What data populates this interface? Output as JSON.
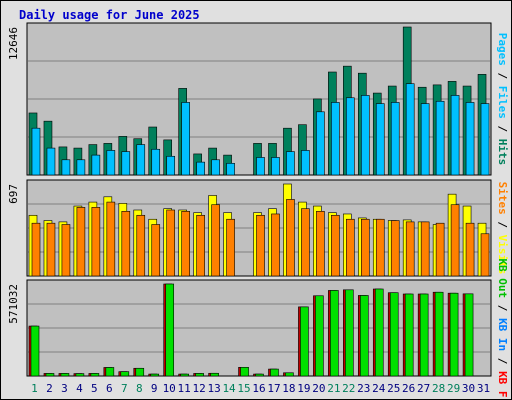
{
  "title": "Daily usage for June 2025",
  "colors": {
    "background": "#e0e0e0",
    "panel": "#c0c0c0",
    "title": "#0000cc",
    "hits": "#00805c",
    "files": "#00c0ff",
    "visits": "#ffff00",
    "sites": "#ff8000",
    "kb_in": "#0080ff",
    "kb_out": "#00c000",
    "kb_f": "#ff0000",
    "kb_bar": "#00e000",
    "kb_shadow": "#c00000",
    "weekday": "#000080",
    "weekend": "#00805c",
    "legend_sep": "#000000"
  },
  "chart_data": [
    {
      "type": "bar",
      "panel": "hits-files",
      "ymax_label": "12646",
      "ylim": [
        0,
        12646
      ],
      "x": [
        1,
        2,
        3,
        4,
        5,
        6,
        7,
        8,
        9,
        10,
        11,
        12,
        13,
        14,
        15,
        16,
        17,
        18,
        19,
        20,
        21,
        22,
        23,
        24,
        25,
        26,
        27,
        28,
        29,
        30,
        31
      ],
      "legend": [
        {
          "text": "Hits",
          "color": "#00805c"
        },
        {
          "text": "Files",
          "color": "#00c0ff"
        },
        {
          "text": "Pages",
          "color": "#00c0ff"
        }
      ],
      "series": [
        {
          "name": "Hits",
          "color": "#00805c",
          "values": [
            5300,
            4600,
            2400,
            2300,
            2600,
            2700,
            3300,
            3100,
            4100,
            3000,
            7400,
            1800,
            2300,
            1700,
            0,
            2700,
            2700,
            4000,
            4300,
            6500,
            8800,
            9300,
            8700,
            7000,
            7600,
            12646,
            7500,
            7700,
            8000,
            7600,
            8600
          ]
        },
        {
          "name": "Files",
          "color": "#00c0ff",
          "values": [
            4000,
            2300,
            1300,
            1300,
            1700,
            2100,
            2000,
            2600,
            2200,
            1600,
            6200,
            1100,
            1300,
            1000,
            0,
            1500,
            1500,
            2000,
            2100,
            5400,
            6200,
            6600,
            6800,
            6100,
            6200,
            7800,
            6100,
            6300,
            6800,
            6200,
            6100
          ]
        }
      ]
    },
    {
      "type": "bar",
      "panel": "visits-sites",
      "ymax_label": "697",
      "ylim": [
        0,
        697
      ],
      "x": [
        1,
        2,
        3,
        4,
        5,
        6,
        7,
        8,
        9,
        10,
        11,
        12,
        13,
        14,
        15,
        16,
        17,
        18,
        19,
        20,
        21,
        22,
        23,
        24,
        25,
        26,
        27,
        28,
        29,
        30,
        31
      ],
      "legend": [
        {
          "text": "Visits",
          "color": "#ffff00"
        },
        {
          "text": "Sites",
          "color": "#ff8000"
        }
      ],
      "series": [
        {
          "name": "Visits",
          "color": "#ffff00",
          "values": [
            460,
            420,
            410,
            530,
            560,
            600,
            550,
            500,
            430,
            510,
            500,
            480,
            610,
            480,
            0,
            480,
            510,
            697,
            560,
            530,
            480,
            470,
            440,
            430,
            420,
            425,
            410,
            390,
            620,
            530,
            400
          ]
        },
        {
          "name": "Sites",
          "color": "#ff8000",
          "values": [
            400,
            400,
            390,
            520,
            520,
            560,
            490,
            460,
            390,
            500,
            490,
            460,
            540,
            430,
            0,
            460,
            470,
            580,
            510,
            490,
            460,
            430,
            430,
            430,
            420,
            410,
            410,
            400,
            540,
            400,
            320
          ]
        }
      ]
    },
    {
      "type": "bar",
      "panel": "kb",
      "ymax_label": "571032",
      "ylim": [
        0,
        571032
      ],
      "x": [
        1,
        2,
        3,
        4,
        5,
        6,
        7,
        8,
        9,
        10,
        11,
        12,
        13,
        14,
        15,
        16,
        17,
        18,
        19,
        20,
        21,
        22,
        23,
        24,
        25,
        26,
        27,
        28,
        29,
        30,
        31
      ],
      "legend": [
        {
          "text": "KB F",
          "color": "#ff0000"
        },
        {
          "text": "KB In",
          "color": "#0080ff"
        },
        {
          "text": "KB Out",
          "color": "#00c000"
        }
      ],
      "series": [
        {
          "name": "KB Out",
          "color": "#00e000",
          "values": [
            310000,
            16000,
            16000,
            15000,
            16000,
            53000,
            27000,
            48000,
            12000,
            571032,
            12000,
            16000,
            17000,
            0,
            54000,
            12000,
            43000,
            20000,
            429000,
            498000,
            531000,
            535000,
            500000,
            540000,
            517000,
            509000,
            509000,
            520000,
            514000,
            510000,
            0
          ]
        }
      ]
    }
  ],
  "days": [
    "1",
    "2",
    "3",
    "4",
    "5",
    "6",
    "7",
    "8",
    "9",
    "10",
    "11",
    "12",
    "13",
    "14",
    "15",
    "16",
    "17",
    "18",
    "19",
    "20",
    "21",
    "22",
    "23",
    "24",
    "25",
    "26",
    "27",
    "28",
    "29",
    "30",
    "31"
  ],
  "weekend_days": [
    1,
    7,
    8,
    14,
    15,
    21,
    22,
    28,
    29
  ]
}
